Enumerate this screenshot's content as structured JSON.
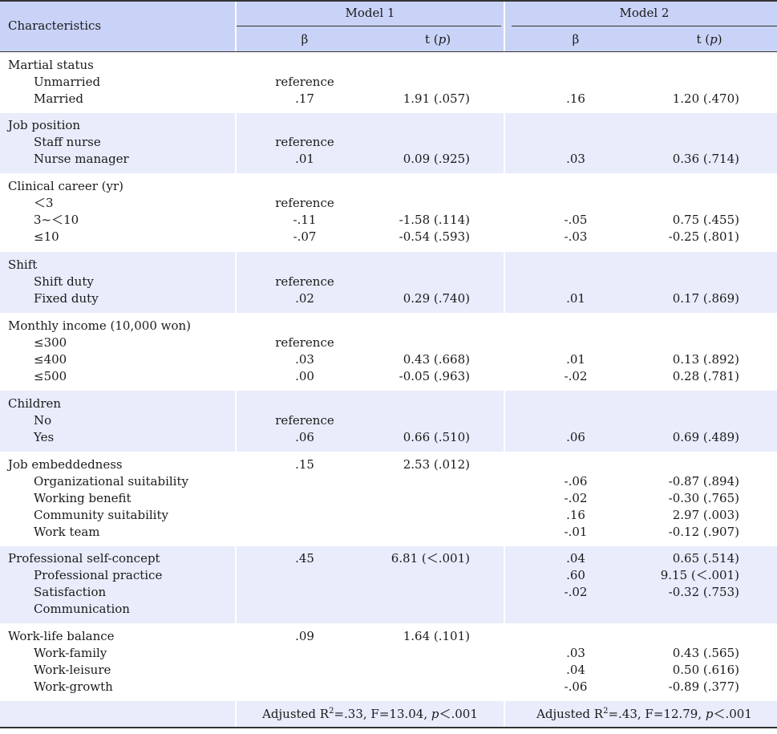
{
  "header": {
    "characteristics": "Characteristics",
    "model1": "Model 1",
    "model2": "Model 2",
    "beta": "β",
    "t_prefix": "t (",
    "t_p": "p",
    "t_suffix": ")"
  },
  "groups": [
    {
      "title": "Martial status",
      "rows": [
        {
          "label": "Unmarried",
          "b1": "reference",
          "t1": "",
          "b2": "",
          "t2": ""
        },
        {
          "label": "Married",
          "b1": ".17",
          "t1": "1.91 (.057)",
          "b2": ".16",
          "t2": "1.20 (.470)"
        }
      ]
    },
    {
      "title": "Job position",
      "rows": [
        {
          "label": "Staff nurse",
          "b1": "reference",
          "t1": "",
          "b2": "",
          "t2": ""
        },
        {
          "label": "Nurse manager",
          "b1": ".01",
          "t1": "0.09 (.925)",
          "b2": ".03",
          "t2": "0.36 (.714)"
        }
      ]
    },
    {
      "title": "Clinical career (yr)",
      "rows": [
        {
          "label": "＜3",
          "b1": "reference",
          "t1": "",
          "b2": "",
          "t2": ""
        },
        {
          "label": "3~＜10",
          "b1": "-.11",
          "t1": "-1.58 (.114)",
          "b2": "-.05",
          "t2": "0.75 (.455)"
        },
        {
          "label": "≤10",
          "b1": "-.07",
          "t1": "-0.54 (.593)",
          "b2": "-.03",
          "t2": "-0.25 (.801)"
        }
      ]
    },
    {
      "title": "Shift",
      "rows": [
        {
          "label": "Shift duty",
          "b1": "reference",
          "t1": "",
          "b2": "",
          "t2": ""
        },
        {
          "label": "Fixed duty",
          "b1": ".02",
          "t1": "0.29 (.740)",
          "b2": ".01",
          "t2": "0.17 (.869)"
        }
      ]
    },
    {
      "title": "Monthly income (10,000 won)",
      "rows": [
        {
          "label": "≤300",
          "b1": "reference",
          "t1": "",
          "b2": "",
          "t2": ""
        },
        {
          "label": "≤400",
          "b1": ".03",
          "t1": "0.43 (.668)",
          "b2": ".01",
          "t2": "0.13 (.892)"
        },
        {
          "label": "≤500",
          "b1": ".00",
          "t1": "-0.05 (.963)",
          "b2": "-.02",
          "t2": "0.28 (.781)"
        }
      ]
    },
    {
      "title": "Children",
      "rows": [
        {
          "label": "No",
          "b1": "reference",
          "t1": "",
          "b2": "",
          "t2": ""
        },
        {
          "label": "Yes",
          "b1": ".06",
          "t1": "0.66 (.510)",
          "b2": ".06",
          "t2": "0.69 (.489)"
        }
      ]
    },
    {
      "title": "Job embeddedness",
      "title_b1": ".15",
      "title_t1": "2.53 (.012)",
      "title_b2": "",
      "title_t2": "",
      "rows": [
        {
          "label": "Organizational suitability",
          "b1": "",
          "t1": "",
          "b2": "-.06",
          "t2": "-0.87 (.894)"
        },
        {
          "label": "Working benefit",
          "b1": "",
          "t1": "",
          "b2": "-.02",
          "t2": "-0.30 (.765)"
        },
        {
          "label": "Community suitability",
          "b1": "",
          "t1": "",
          "b2": ".16",
          "t2": "2.97 (.003)"
        },
        {
          "label": "Work team",
          "b1": "",
          "t1": "",
          "b2": "-.01",
          "t2": "-0.12 (.907)"
        }
      ]
    },
    {
      "title": "Professional self-concept",
      "title_b1": ".45",
      "title_t1": "6.81 (＜.001)",
      "title_b2": ".04",
      "title_t2": "0.65 (.514)",
      "rows": [
        {
          "label": "Professional practice",
          "b1": "",
          "t1": "",
          "b2": ".60",
          "t2": "9.15 (＜.001)"
        },
        {
          "label": "Satisfaction",
          "b1": "",
          "t1": "",
          "b2": "-.02",
          "t2": "-0.32 (.753)"
        },
        {
          "label": "Communication",
          "b1": "",
          "t1": "",
          "b2": "",
          "t2": ""
        }
      ]
    },
    {
      "title": "Work-life balance",
      "title_b1": ".09",
      "title_t1": "1.64 (.101)",
      "title_b2": "",
      "title_t2": "",
      "rows": [
        {
          "label": "Work-family",
          "b1": "",
          "t1": "",
          "b2": ".03",
          "t2": "0.43 (.565)"
        },
        {
          "label": "Work-leisure",
          "b1": "",
          "t1": "",
          "b2": ".04",
          "t2": "0.50 (.616)"
        },
        {
          "label": "Work-growth",
          "b1": "",
          "t1": "",
          "b2": "-.06",
          "t2": "-0.89 (.377)"
        }
      ]
    }
  ],
  "footer": {
    "m1_prefix": "Adjusted R",
    "m1_sup": "2",
    "m1_mid": "=.33,  F=13.04,  ",
    "m1_p": "p",
    "m1_end": "＜.001",
    "m2_prefix": "Adjusted R",
    "m2_sup": "2",
    "m2_mid": "=.43,  F=12.79,  ",
    "m2_p": "p",
    "m2_end": "＜.001"
  }
}
